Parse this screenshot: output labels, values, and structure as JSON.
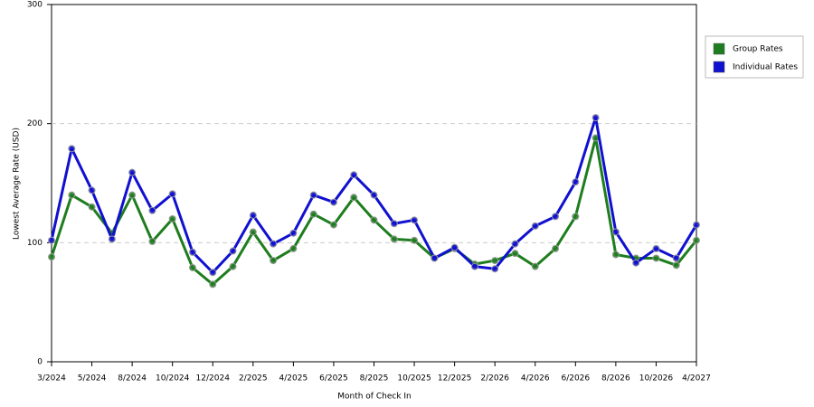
{
  "chart_data": {
    "type": "line",
    "x_label": "Month of Check In",
    "y_label": "Lowest Average Rate (USD)",
    "categories": [
      "3/2024",
      null,
      "5/2024",
      null,
      "8/2024",
      null,
      "10/2024",
      null,
      "12/2024",
      null,
      "2/2025",
      null,
      "4/2025",
      null,
      "6/2025",
      null,
      "8/2025",
      null,
      "10/2025",
      null,
      "12/2025",
      null,
      "2/2026",
      null,
      "4/2026",
      null,
      "6/2026",
      null,
      "8/2026",
      null,
      "10/2026",
      null,
      "4/2027"
    ],
    "series": [
      {
        "name": "Group Rates",
        "color": "#1e7d1e",
        "values": [
          88,
          140,
          130,
          108,
          140,
          101,
          120,
          79,
          65,
          80,
          109,
          85,
          95,
          124,
          115,
          138,
          119,
          103,
          102,
          87,
          95,
          82,
          85,
          91,
          80,
          95,
          122,
          188,
          90,
          87,
          87,
          81,
          102
        ]
      },
      {
        "name": "Individual Rates",
        "color": "#1010d0",
        "values": [
          102,
          179,
          144,
          103,
          159,
          127,
          141,
          92,
          75,
          93,
          123,
          99,
          108,
          140,
          134,
          157,
          140,
          116,
          119,
          87,
          96,
          80,
          78,
          99,
          114,
          122,
          151,
          205,
          109,
          83,
          95,
          87,
          115
        ]
      }
    ],
    "ylim": [
      0,
      300
    ],
    "yticks": [
      0,
      100,
      200,
      300
    ],
    "grid": true,
    "legend": "right"
  }
}
